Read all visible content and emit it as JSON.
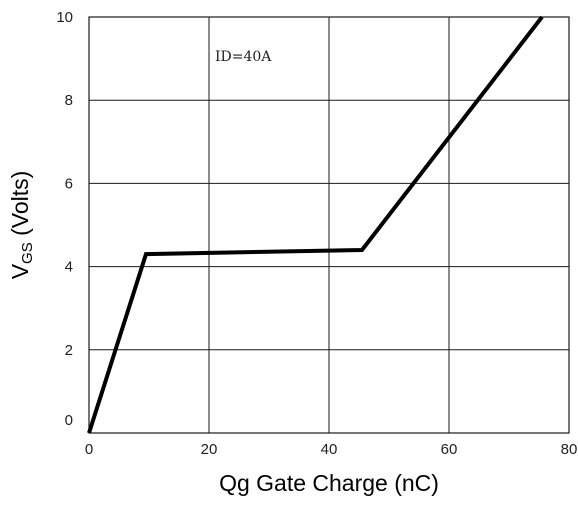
{
  "chart_data": {
    "type": "line",
    "xlabel": "Qg Gate Charge (nC)",
    "ylabel_main": "V",
    "ylabel_sub": "GS",
    "ylabel_rest": " (Volts)",
    "xlim": [
      0,
      80
    ],
    "ylim": [
      0,
      10
    ],
    "x_ticks": [
      0,
      20,
      40,
      60,
      80
    ],
    "y_ticks": [
      0,
      2,
      4,
      6,
      8,
      10
    ],
    "x_tick_labels": [
      "0",
      "20",
      "40",
      "60",
      "80"
    ],
    "y_tick_labels": [
      "0",
      "2",
      "4",
      "6",
      "8",
      "10"
    ],
    "grid": true,
    "annotation": "ID=40A",
    "series": [
      {
        "points": [
          {
            "x": 0,
            "y": 0
          },
          {
            "x": 9.5,
            "y": 4.3
          },
          {
            "x": 45.5,
            "y": 4.4
          },
          {
            "x": 75.5,
            "y": 10
          }
        ]
      }
    ],
    "colors": {
      "line": "#000000",
      "grid": "#1a1a1a",
      "frame": "#1a1a1a"
    }
  }
}
